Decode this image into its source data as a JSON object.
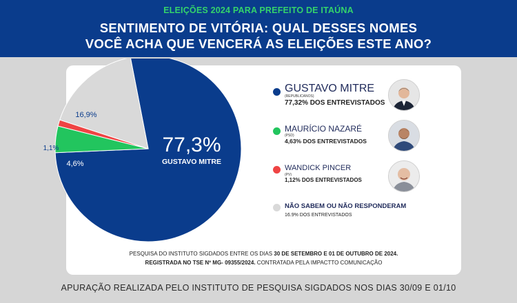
{
  "header": {
    "kicker": "ELEIÇÕES 2024 PARA PREFEITO DE ITAÚNA",
    "title_line1": "SENTIMENTO DE VITÓRIA: QUAL DESSES NOMES",
    "title_line2": "VOCÊ ACHA QUE VENCERÁ AS ELEIÇÕES ESTE ANO?"
  },
  "colors": {
    "header_bg": "#0a3c8c",
    "kicker": "#34d36b",
    "mitre": "#0a3c8c",
    "nazare": "#22c55e",
    "pincer": "#ef4444",
    "nao_sabem": "#d9d9d9",
    "page_bg": "#d6d6d6"
  },
  "chart_data": {
    "type": "pie",
    "slices": [
      {
        "label": "GUSTAVO MITRE",
        "value": 77.3,
        "display": "77,3%"
      },
      {
        "label": "MAURÍCIO NAZARÉ",
        "value": 4.6,
        "display": "4,6%"
      },
      {
        "label": "WANDICK PINCER",
        "value": 1.1,
        "display": "1,1%"
      },
      {
        "label": "NÃO SABEM OU NÃO RESPONDERAM",
        "value": 16.9,
        "display": "16,9%"
      }
    ],
    "center_label": "GUSTAVO MITRE"
  },
  "legend": [
    {
      "name": "GUSTAVO MITRE",
      "party": "(REPUBLICANOS)",
      "share": "77,32% DOS ENTREVISTADOS",
      "avatar": "person-photo"
    },
    {
      "name": "MAURÍCIO NAZARÉ",
      "party": "(PSD)",
      "share": "4,63% DOS ENTREVISTADOS",
      "avatar": "person-photo"
    },
    {
      "name": "WANDICK PINCER",
      "party": "(PV)",
      "share": "1,12% DOS ENTREVISTADOS",
      "avatar": "person-photo"
    },
    {
      "name": "NÃO SABEM OU NÃO RESPONDERAM",
      "party": "",
      "share": "16.9% DOS ENTREVISTADOS"
    }
  ],
  "footnote": {
    "line1_prefix": "PESQUISA DO INSTITUTO SIGDADOS ENTRE OS DIAS ",
    "line1_bold": "30 DE SETEMBRO E 01 DE OUTUBRO DE 2024.",
    "line2_bold": "REGISTRADA NO TSE Nº MG- 09355/2024.",
    "line2_rest": " CONTRATADA PELA IMPACTTO COMUNICAÇÃO"
  },
  "bottom_note": "APURAÇÃO REALIZADA PELO INSTITUTO DE PESQUISA SIGDADOS NOS DIAS 30/09  E 01/10"
}
